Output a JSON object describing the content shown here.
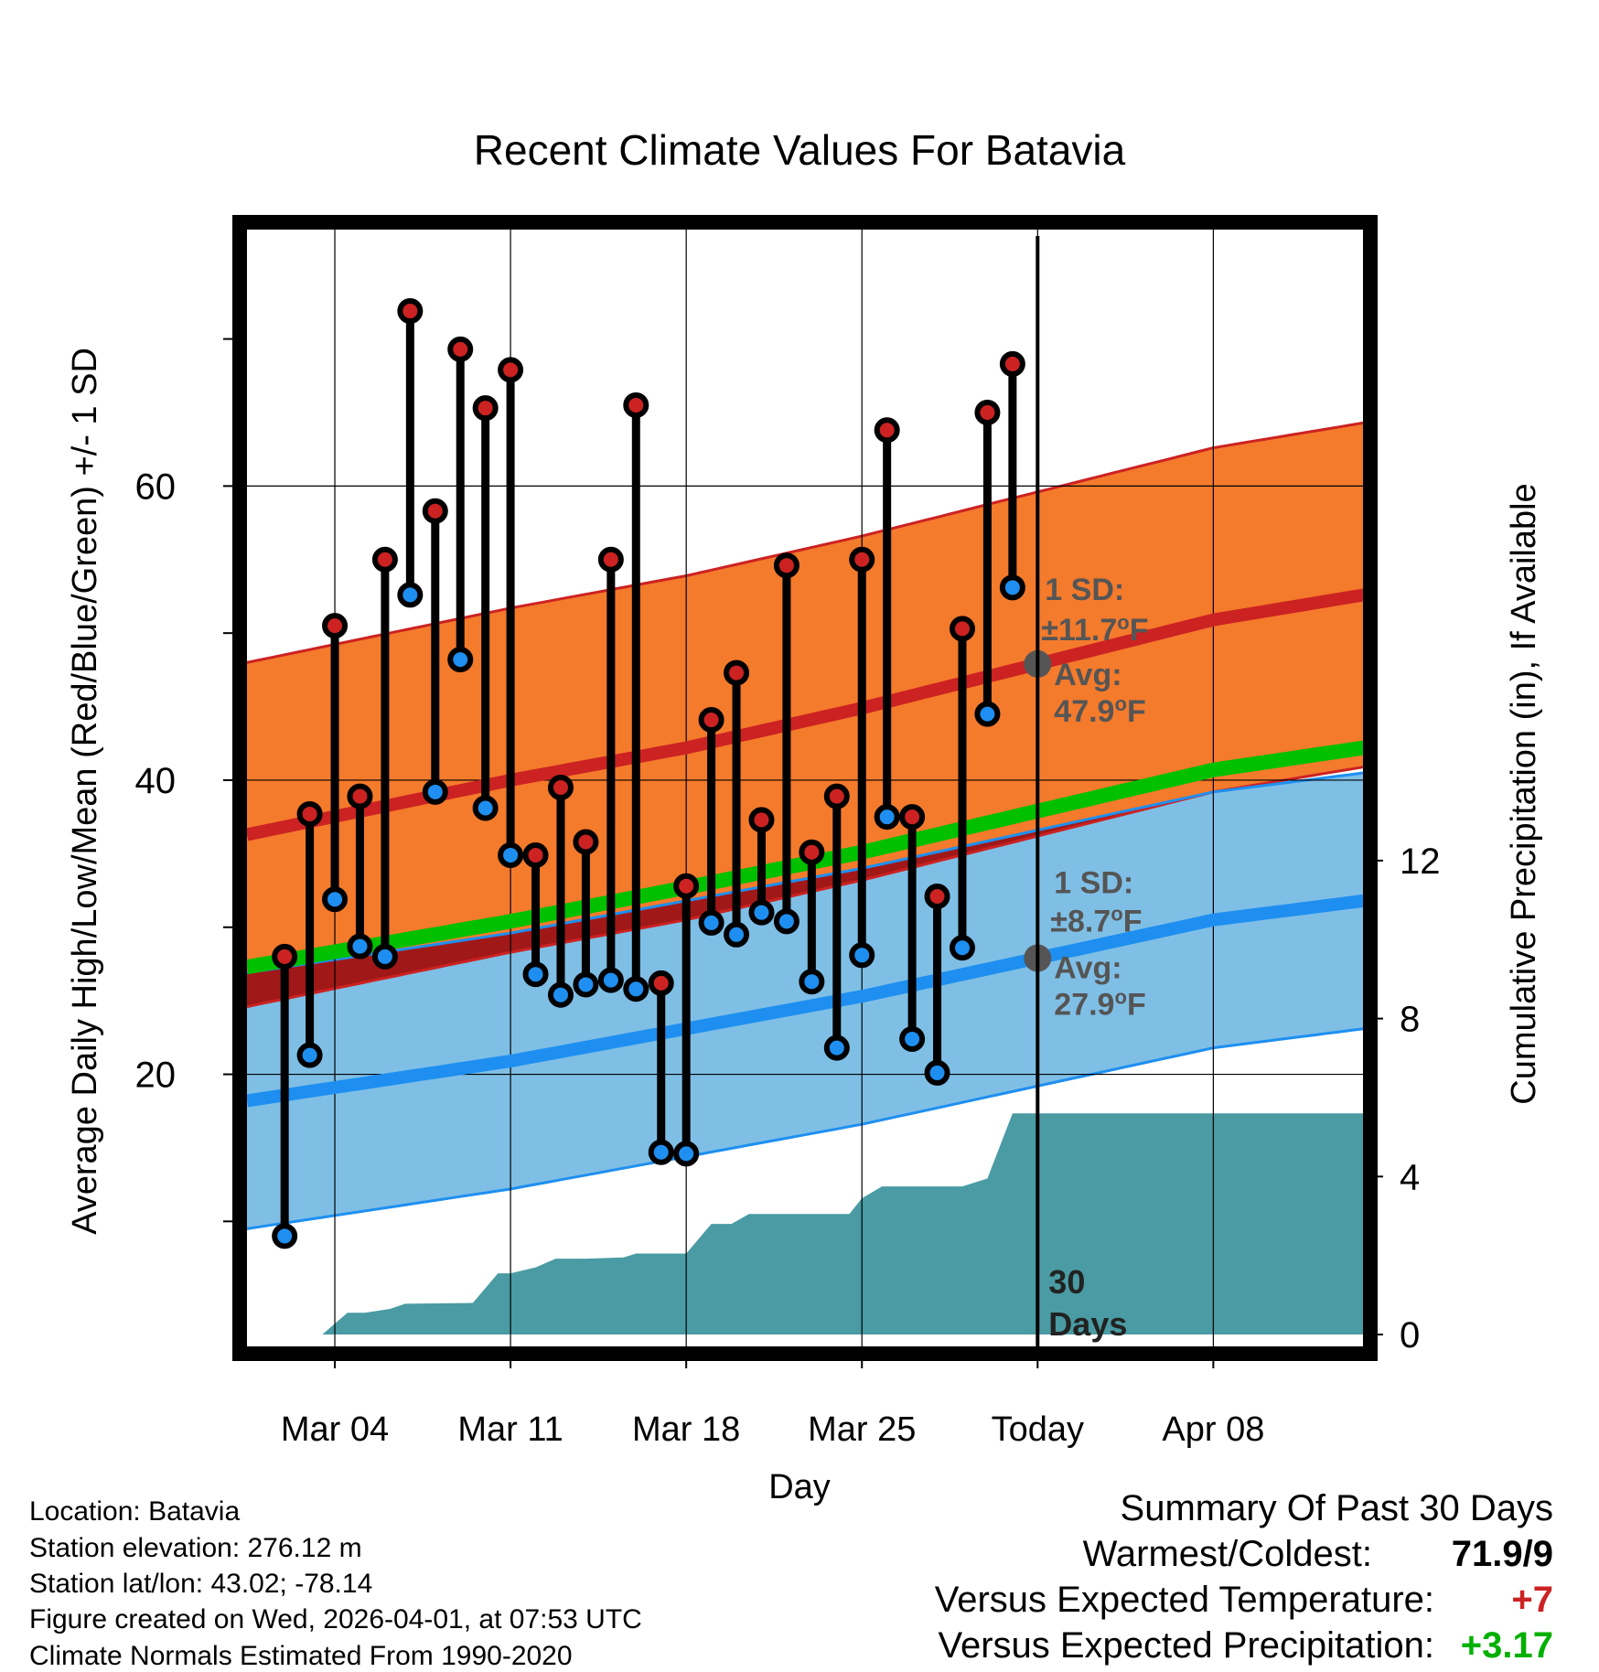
{
  "chart_data": {
    "type": "line",
    "title": "Recent Climate Values For Batavia",
    "xlabel": "Day",
    "ylabel": "Average Daily High/Low/Mean (Red/Blue/Green) +/- 1 SD",
    "y2label": "Cumulative Precipitation (in), If Available",
    "xlim": [
      -3.5,
      41
    ],
    "ylim": [
      1.5,
      77.5
    ],
    "y2lim": [
      -0.3,
      28
    ],
    "y_ticks": [
      "20",
      "40",
      "60"
    ],
    "y2_ticks": [
      "0",
      "4",
      "8",
      "12"
    ],
    "x_ticks": [
      {
        "day": 0,
        "label": "Mar 04"
      },
      {
        "day": 7,
        "label": "Mar 11"
      },
      {
        "day": 14,
        "label": "Mar 18"
      },
      {
        "day": 21,
        "label": "Mar 25"
      },
      {
        "day": 28,
        "label": "Today"
      },
      {
        "day": 35,
        "label": "Apr 08"
      }
    ],
    "today_day": 28,
    "days": [
      -2,
      -1,
      0,
      1,
      2,
      3,
      4,
      5,
      6,
      7,
      8,
      9,
      10,
      11,
      12,
      13,
      14,
      15,
      16,
      17,
      18,
      19,
      20,
      21,
      22,
      23,
      24,
      25,
      26,
      27
    ],
    "highs": [
      28,
      37.7,
      50.5,
      38.9,
      55,
      71.9,
      58.3,
      69.3,
      65.3,
      67.9,
      34.9,
      39.5,
      35.8,
      55,
      65.5,
      26.2,
      32.8,
      44.1,
      47.3,
      37.3,
      54.6,
      35.1,
      38.9,
      55,
      63.8,
      37.5,
      32.1,
      50.3,
      65,
      68.3
    ],
    "lows": [
      9,
      21.3,
      31.9,
      28.7,
      28,
      52.6,
      39.2,
      48.2,
      38.1,
      34.9,
      26.8,
      25.4,
      26.1,
      26.4,
      25.8,
      14.7,
      14.6,
      30.3,
      29.5,
      31,
      30.4,
      26.3,
      21.8,
      28.1,
      37.5,
      22.4,
      20.1,
      28.6,
      44.5,
      53.1
    ],
    "normal_high": {
      "x": [
        -3.5,
        7,
        14,
        21,
        28,
        35,
        41
      ],
      "y": [
        36.3,
        40,
        42.2,
        44.9,
        47.9,
        50.9,
        52.6
      ]
    },
    "normal_low": {
      "x": [
        -3.5,
        7,
        14,
        21,
        28,
        35,
        41
      ],
      "y": [
        18.2,
        20.9,
        23.1,
        25.3,
        27.9,
        30.5,
        31.8
      ]
    },
    "normal_mean": {
      "x": [
        -3.5,
        7,
        14,
        21,
        28,
        35,
        41
      ],
      "y": [
        27.3,
        30.4,
        32.7,
        35.1,
        37.9,
        40.7,
        42.2
      ]
    },
    "high_sd": 11.7,
    "low_sd": 8.7,
    "precip": {
      "x": [
        -3.5,
        -0.5,
        0.5,
        1.2,
        2.2,
        2.8,
        5.5,
        6.5,
        7,
        8,
        8.8,
        10,
        11.5,
        12,
        14,
        15,
        15.8,
        16.5,
        17.5,
        18,
        19,
        20.5,
        21,
        21.8,
        23,
        25,
        26,
        27,
        41
      ],
      "y": [
        0,
        0,
        0.55,
        0.55,
        0.65,
        0.78,
        0.8,
        1.55,
        1.55,
        1.7,
        1.92,
        1.92,
        1.95,
        2.05,
        2.05,
        2.8,
        2.8,
        3.05,
        3.05,
        3.05,
        3.05,
        3.05,
        3.45,
        3.75,
        3.75,
        3.75,
        3.95,
        5.6,
        5.6
      ]
    },
    "annotations": {
      "high_sd_label": "1 SD:",
      "high_sd_value": "±11.7",
      "high_avg_label": "Avg:",
      "high_avg_value": "47.9",
      "low_sd_label": "1 SD:",
      "low_sd_value": "±8.7",
      "low_avg_label": "Avg:",
      "low_avg_value": "27.9",
      "degree_sup": "o",
      "unit_f": "F",
      "days_count": "30",
      "days_word": "Days"
    },
    "colors": {
      "high_band": "#f47a2c",
      "high_line": "#cc2222",
      "low_band": "#7fbfe6",
      "low_line": "#1e8ff0",
      "mean_line": "#00c000",
      "overlap_band": "#a01818",
      "precip": "#4a9ba3",
      "annotation": "#555555",
      "high_marker": "#cc2222",
      "low_marker": "#1e8ff0",
      "positive": "#00b000",
      "warm": "#cc2222"
    }
  },
  "info": {
    "location": "Location: Batavia",
    "elevation": "Station elevation: 276.12 m",
    "latlon": "Station lat/lon: 43.02; -78.14",
    "created": "Figure created on Wed, 2026-04-01, at 07:53 UTC",
    "normals": "Climate Normals Estimated From 1990-2020"
  },
  "summary": {
    "title": "Summary Of Past 30 Days",
    "warmest_label": "Warmest/Coldest:",
    "warmest_value": "71.9/9",
    "temp_label": "Versus Expected Temperature:",
    "temp_value": "+7",
    "precip_label": "Versus Expected Precipitation:",
    "precip_value": "+3.17"
  }
}
